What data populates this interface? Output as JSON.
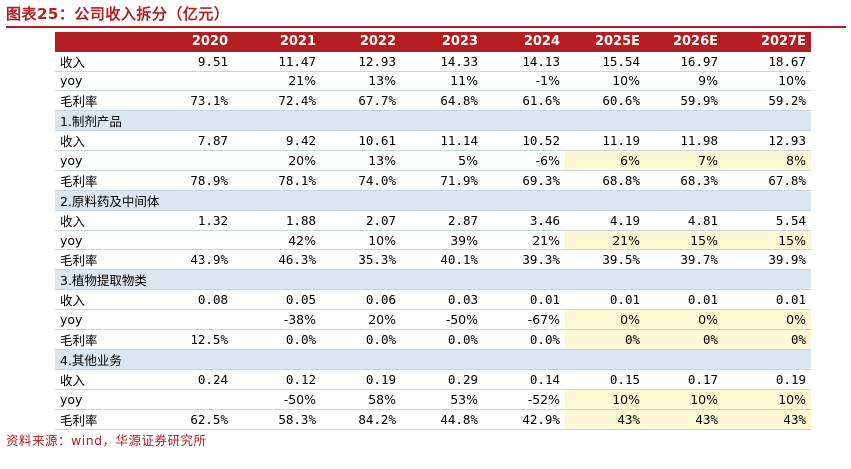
{
  "title": "图表25：公司收入拆分（亿元）",
  "source": "资料来源：wind，华源证券研究所",
  "colors": {
    "accent": "#b41e23",
    "section_bg": "#dce6f1",
    "highlight": "#fff8d4"
  },
  "headers": [
    "",
    "2020",
    "2021",
    "2022",
    "2023",
    "2024",
    "2025E",
    "2026E",
    "2027E"
  ],
  "rows": [
    {
      "kind": "data",
      "label": "收入",
      "values": [
        "9.51",
        "11.47",
        "12.93",
        "14.33",
        "14.13",
        "15.54",
        "16.97",
        "18.67"
      ]
    },
    {
      "kind": "data",
      "label": "yoy",
      "values": [
        "",
        "21%",
        "13%",
        "11%",
        "-1%",
        "10%",
        "9%",
        "10%"
      ]
    },
    {
      "kind": "data",
      "label": "毛利率",
      "values": [
        "73.1%",
        "72.4%",
        "67.7%",
        "64.8%",
        "61.6%",
        "60.6%",
        "59.9%",
        "59.2%"
      ]
    },
    {
      "kind": "section",
      "label": "1.制剂产品"
    },
    {
      "kind": "data",
      "label": "收入",
      "values": [
        "7.87",
        "9.42",
        "10.61",
        "11.14",
        "10.52",
        "11.19",
        "11.98",
        "12.93"
      ]
    },
    {
      "kind": "data",
      "label": "yoy",
      "values": [
        "",
        "20%",
        "13%",
        "5%",
        "-6%",
        "6%",
        "7%",
        "8%"
      ],
      "highlight": true
    },
    {
      "kind": "data",
      "label": "毛利率",
      "values": [
        "78.9%",
        "78.1%",
        "74.0%",
        "71.9%",
        "69.3%",
        "68.8%",
        "68.3%",
        "67.8%"
      ]
    },
    {
      "kind": "section",
      "label": "2.原料药及中间体"
    },
    {
      "kind": "data",
      "label": "收入",
      "values": [
        "1.32",
        "1.88",
        "2.07",
        "2.87",
        "3.46",
        "4.19",
        "4.81",
        "5.54"
      ]
    },
    {
      "kind": "data",
      "label": "yoy",
      "values": [
        "",
        "42%",
        "10%",
        "39%",
        "21%",
        "21%",
        "15%",
        "15%"
      ],
      "highlight": true
    },
    {
      "kind": "data",
      "label": "毛利率",
      "values": [
        "43.9%",
        "46.3%",
        "35.3%",
        "40.1%",
        "39.3%",
        "39.5%",
        "39.7%",
        "39.9%"
      ]
    },
    {
      "kind": "section",
      "label": "3.植物提取物类"
    },
    {
      "kind": "data",
      "label": "收入",
      "values": [
        "0.08",
        "0.05",
        "0.06",
        "0.03",
        "0.01",
        "0.01",
        "0.01",
        "0.01"
      ]
    },
    {
      "kind": "data",
      "label": "yoy",
      "values": [
        "",
        "-38%",
        "20%",
        "-50%",
        "-67%",
        "0%",
        "0%",
        "0%"
      ],
      "highlight": true
    },
    {
      "kind": "data",
      "label": "毛利率",
      "values": [
        "12.5%",
        "0.0%",
        "0.0%",
        "0.0%",
        "0.0%",
        "0%",
        "0%",
        "0%"
      ],
      "highlight": true
    },
    {
      "kind": "section",
      "label": "4.其他业务"
    },
    {
      "kind": "data",
      "label": "收入",
      "values": [
        "0.24",
        "0.12",
        "0.19",
        "0.29",
        "0.14",
        "0.15",
        "0.17",
        "0.19"
      ]
    },
    {
      "kind": "data",
      "label": "yoy",
      "values": [
        "",
        "-50%",
        "58%",
        "53%",
        "-52%",
        "10%",
        "10%",
        "10%"
      ],
      "highlight": true
    },
    {
      "kind": "data",
      "label": "毛利率",
      "values": [
        "62.5%",
        "58.3%",
        "84.2%",
        "44.8%",
        "42.9%",
        "43%",
        "43%",
        "43%"
      ],
      "highlight": true
    }
  ]
}
